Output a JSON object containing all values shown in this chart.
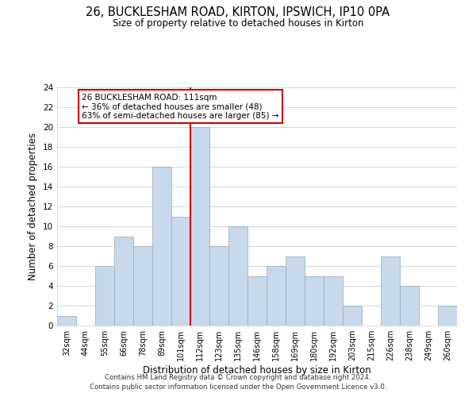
{
  "title": "26, BUCKLESHAM ROAD, KIRTON, IPSWICH, IP10 0PA",
  "subtitle": "Size of property relative to detached houses in Kirton",
  "xlabel": "Distribution of detached houses by size in Kirton",
  "ylabel": "Number of detached properties",
  "categories": [
    "32sqm",
    "44sqm",
    "55sqm",
    "66sqm",
    "78sqm",
    "89sqm",
    "101sqm",
    "112sqm",
    "123sqm",
    "135sqm",
    "146sqm",
    "158sqm",
    "169sqm",
    "180sqm",
    "192sqm",
    "203sqm",
    "215sqm",
    "226sqm",
    "238sqm",
    "249sqm",
    "260sqm"
  ],
  "values": [
    1,
    0,
    6,
    9,
    8,
    16,
    11,
    20,
    8,
    10,
    5,
    6,
    7,
    5,
    5,
    2,
    0,
    7,
    4,
    0,
    2
  ],
  "bar_color": "#c8d8eb",
  "bar_edge_color": "#9ab0c8",
  "highlight_index": 7,
  "highlight_line_color": "#cc0000",
  "ylim": [
    0,
    24
  ],
  "yticks": [
    0,
    2,
    4,
    6,
    8,
    10,
    12,
    14,
    16,
    18,
    20,
    22,
    24
  ],
  "annotation_line1": "26 BUCKLESHAM ROAD: 111sqm",
  "annotation_line2": "← 36% of detached houses are smaller (48)",
  "annotation_line3": "63% of semi-detached houses are larger (85) →",
  "annotation_box_color": "#ffffff",
  "annotation_box_edge": "#cc0000",
  "footer_line1": "Contains HM Land Registry data © Crown copyright and database right 2024.",
  "footer_line2": "Contains public sector information licensed under the Open Government Licence v3.0.",
  "background_color": "#ffffff",
  "grid_color": "#d0d8e0"
}
